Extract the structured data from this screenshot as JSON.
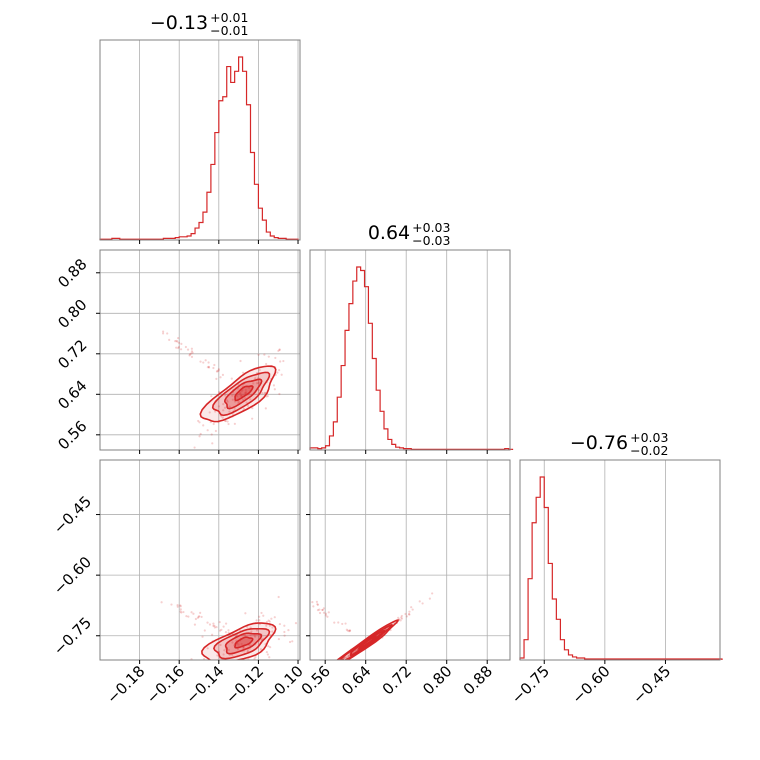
{
  "chart_data": {
    "type": "corner",
    "color": "#d62728",
    "titles": [
      {
        "value": "−0.13",
        "plus": "+0.01",
        "minus": "−0.01"
      },
      {
        "value": "0.64",
        "plus": "+0.03",
        "minus": "−0.03"
      },
      {
        "value": "−0.76",
        "plus": "+0.03",
        "minus": "−0.02"
      }
    ],
    "params": [
      {
        "range": [
          -0.2,
          -0.099
        ],
        "ticks": [
          -0.18,
          -0.16,
          -0.14,
          -0.12,
          -0.1
        ],
        "tick_labels": [
          "−0.18",
          "−0.16",
          "−0.14",
          "−0.12",
          "−0.10"
        ]
      },
      {
        "range": [
          0.53,
          0.925
        ],
        "ticks": [
          0.56,
          0.64,
          0.72,
          0.8,
          0.88
        ],
        "tick_labels": [
          "0.56",
          "0.64",
          "0.72",
          "0.80",
          "0.88"
        ]
      },
      {
        "range": [
          -0.81,
          -0.315
        ],
        "ticks": [
          -0.75,
          -0.6,
          -0.45
        ],
        "tick_labels": [
          "−0.75",
          "−0.60",
          "−0.45"
        ]
      }
    ],
    "histograms": [
      {
        "param": 0,
        "edges_range": [
          -0.2,
          -0.1
        ],
        "counts": [
          1,
          1,
          1,
          2,
          2,
          1,
          1,
          1,
          1,
          1,
          1,
          1,
          1,
          1,
          1,
          1,
          2,
          2,
          2,
          3,
          4,
          4,
          5,
          8,
          15,
          22,
          35,
          60,
          95,
          135,
          175,
          180,
          218,
          198,
          212,
          230,
          212,
          170,
          110,
          70,
          40,
          25,
          10,
          5,
          3,
          2,
          2,
          1,
          1,
          1
        ]
      },
      {
        "param": 1,
        "edges_range": [
          0.53,
          0.93
        ],
        "counts": [
          3,
          3,
          2,
          3,
          6,
          20,
          40,
          75,
          120,
          170,
          208,
          240,
          260,
          255,
          232,
          180,
          130,
          85,
          55,
          30,
          15,
          8,
          4,
          3,
          2,
          2,
          1,
          1,
          1,
          1,
          1,
          1,
          1,
          1,
          1,
          1,
          1,
          1,
          1,
          1,
          1,
          1,
          1,
          1,
          1,
          1,
          1,
          1,
          1,
          1,
          2,
          1
        ]
      },
      {
        "param": 2,
        "edges_range": [
          -0.81,
          -0.31
        ],
        "counts": [
          2,
          20,
          80,
          135,
          160,
          180,
          150,
          95,
          60,
          40,
          20,
          10,
          5,
          3,
          2,
          2,
          1,
          1,
          1,
          1,
          1,
          1,
          1,
          1,
          1,
          1,
          1,
          1,
          1,
          1,
          1,
          1,
          1,
          1,
          1,
          1,
          1,
          1,
          1,
          1,
          1,
          1,
          1,
          1,
          1,
          1,
          1,
          1,
          1,
          1
        ]
      }
    ],
    "joint_panels": [
      {
        "x": 0,
        "y": 1,
        "center": [
          -0.127,
          0.645
        ],
        "spread": [
          0.0075,
          0.028
        ],
        "correlation": 0.75
      },
      {
        "x": 0,
        "y": 2,
        "center": [
          -0.127,
          -0.765
        ],
        "spread": [
          0.0075,
          0.025
        ],
        "correlation": 0.6
      },
      {
        "x": 1,
        "y": 2,
        "center": [
          0.645,
          -0.765
        ],
        "spread": [
          0.028,
          0.025
        ],
        "correlation": 0.99
      }
    ],
    "grid": true
  }
}
